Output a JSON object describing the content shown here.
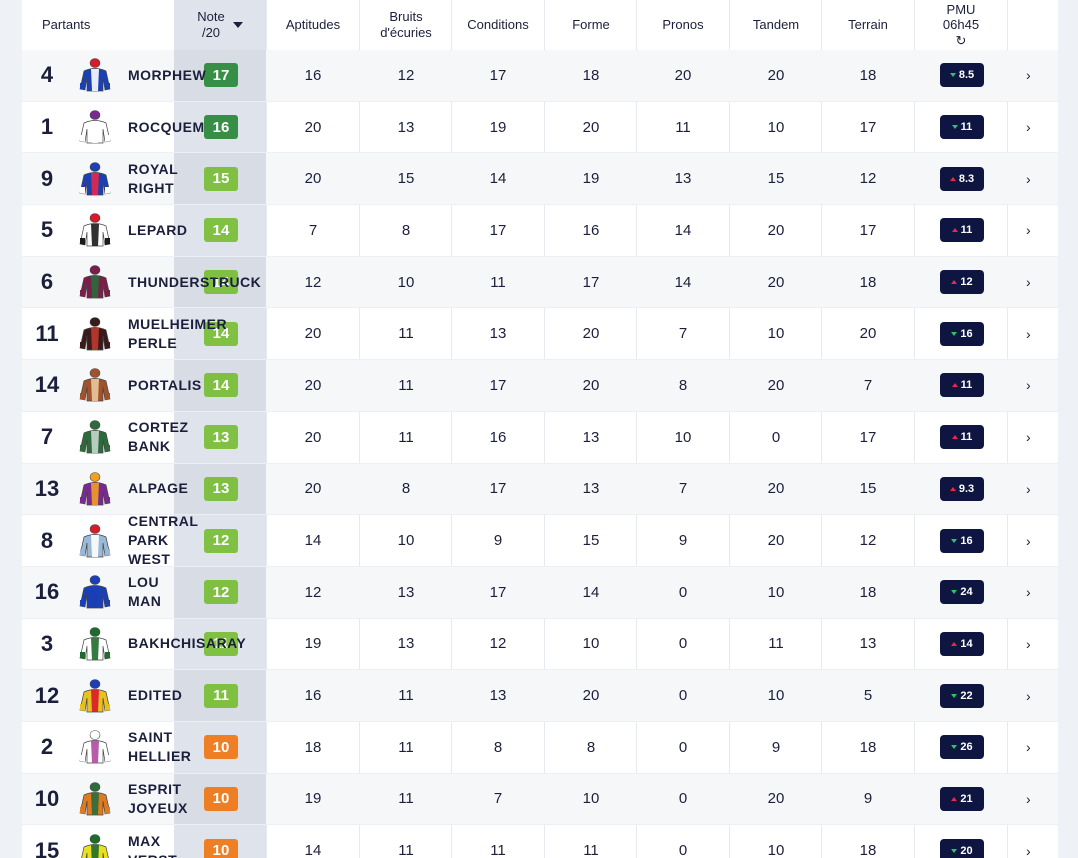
{
  "header": {
    "partants": "Partants",
    "note_line1": "Note",
    "note_line2": "/20",
    "aptitudes": "Aptitudes",
    "bruits_line1": "Bruits",
    "bruits_line2": "d'écuries",
    "conditions": "Conditions",
    "forme": "Forme",
    "pronos": "Pronos",
    "tandem": "Tandem",
    "terrain": "Terrain",
    "pmu_line1": "PMU",
    "pmu_line2": "06h45"
  },
  "colors": {
    "dark_green": "#2e8b3c",
    "light_green": "#7bbf3a",
    "orange": "#f07a1a",
    "odds_bg": "#0e1540",
    "trend_up": "#e8284a",
    "trend_down": "#2bc46a"
  },
  "rows": [
    {
      "num": "4",
      "name": "MORPHEW",
      "note": "17",
      "tier": "dark",
      "aptitudes": "16",
      "bruits": "12",
      "conditions": "17",
      "forme": "18",
      "pronos": "20",
      "tandem": "20",
      "terrain": "18",
      "odds": "8.5",
      "trend": "down",
      "silk": [
        "#1b3fb4",
        "#ffffff",
        "#1b3fb4",
        "#d61b2a"
      ]
    },
    {
      "num": "1",
      "name": "ROCQUEM",
      "note": "16",
      "tier": "dark",
      "aptitudes": "20",
      "bruits": "13",
      "conditions": "19",
      "forme": "20",
      "pronos": "11",
      "tandem": "10",
      "terrain": "17",
      "odds": "11",
      "trend": "down",
      "silk": [
        "#ffffff",
        "#ffffff",
        "#ffffff",
        "#7a2a8f"
      ]
    },
    {
      "num": "9",
      "name": "ROYAL\nRIGHT",
      "note": "15",
      "tier": "light",
      "aptitudes": "20",
      "bruits": "15",
      "conditions": "14",
      "forme": "19",
      "pronos": "13",
      "tandem": "15",
      "terrain": "12",
      "odds": "8.3",
      "trend": "up",
      "silk": [
        "#1b3fb4",
        "#e8284a",
        "#ffffff",
        "#1b3fb4"
      ]
    },
    {
      "num": "5",
      "name": "LEPARD",
      "note": "14",
      "tier": "light",
      "aptitudes": "7",
      "bruits": "8",
      "conditions": "17",
      "forme": "16",
      "pronos": "14",
      "tandem": "20",
      "terrain": "17",
      "odds": "11",
      "trend": "up",
      "silk": [
        "#ffffff",
        "#1b1b1b",
        "#1b1b1b",
        "#d61b2a"
      ]
    },
    {
      "num": "6",
      "name": "THUNDERSTRUCK",
      "note": "14",
      "tier": "light",
      "aptitudes": "12",
      "bruits": "10",
      "conditions": "11",
      "forme": "17",
      "pronos": "14",
      "tandem": "20",
      "terrain": "18",
      "odds": "12",
      "trend": "up",
      "silk": [
        "#7a1f4a",
        "#2a6b3a",
        "#7a1f4a",
        "#7a1f4a"
      ]
    },
    {
      "num": "11",
      "name": "MUELHEIMER\nPERLE",
      "note": "14",
      "tier": "light",
      "aptitudes": "20",
      "bruits": "11",
      "conditions": "13",
      "forme": "20",
      "pronos": "7",
      "tandem": "10",
      "terrain": "20",
      "odds": "16",
      "trend": "down",
      "silk": [
        "#3a1a1a",
        "#c0392b",
        "#3a1a1a",
        "#3a1a1a"
      ]
    },
    {
      "num": "14",
      "name": "PORTALIS",
      "note": "14",
      "tier": "light",
      "aptitudes": "20",
      "bruits": "11",
      "conditions": "17",
      "forme": "20",
      "pronos": "8",
      "tandem": "20",
      "terrain": "7",
      "odds": "11",
      "trend": "up",
      "silk": [
        "#a0522d",
        "#e8c9a0",
        "#a0522d",
        "#a0522d"
      ]
    },
    {
      "num": "7",
      "name": "CORTEZ\nBANK",
      "note": "13",
      "tier": "light",
      "aptitudes": "20",
      "bruits": "11",
      "conditions": "16",
      "forme": "13",
      "pronos": "10",
      "tandem": "0",
      "terrain": "17",
      "odds": "11",
      "trend": "up",
      "silk": [
        "#2e6b3c",
        "#c8d6cc",
        "#2e6b3c",
        "#2e6b3c"
      ]
    },
    {
      "num": "13",
      "name": "ALPAGE",
      "note": "13",
      "tier": "light",
      "aptitudes": "20",
      "bruits": "8",
      "conditions": "17",
      "forme": "13",
      "pronos": "7",
      "tandem": "20",
      "terrain": "15",
      "odds": "9.3",
      "trend": "up",
      "silk": [
        "#7a2a8f",
        "#f0a020",
        "#7a2a8f",
        "#f0a020"
      ]
    },
    {
      "num": "8",
      "name": "CENTRAL\nPARK\nWEST",
      "note": "12",
      "tier": "light",
      "aptitudes": "14",
      "bruits": "10",
      "conditions": "9",
      "forme": "15",
      "pronos": "9",
      "tandem": "20",
      "terrain": "12",
      "odds": "16",
      "trend": "down",
      "silk": [
        "#9ab8d8",
        "#ffffff",
        "#9ab8d8",
        "#d61b2a"
      ]
    },
    {
      "num": "16",
      "name": "LOU\nMAN",
      "note": "12",
      "tier": "light",
      "aptitudes": "12",
      "bruits": "13",
      "conditions": "17",
      "forme": "14",
      "pronos": "0",
      "tandem": "10",
      "terrain": "18",
      "odds": "24",
      "trend": "down",
      "silk": [
        "#1b3fb4",
        "#1b3fb4",
        "#1b3fb4",
        "#1b3fb4"
      ]
    },
    {
      "num": "3",
      "name": "BAKHCHISARAY",
      "note": "11",
      "tier": "light",
      "aptitudes": "19",
      "bruits": "13",
      "conditions": "12",
      "forme": "10",
      "pronos": "0",
      "tandem": "11",
      "terrain": "13",
      "odds": "14",
      "trend": "up",
      "silk": [
        "#ffffff",
        "#1e6b2e",
        "#1e6b2e",
        "#1e6b2e"
      ]
    },
    {
      "num": "12",
      "name": "EDITED",
      "note": "11",
      "tier": "light",
      "aptitudes": "16",
      "bruits": "11",
      "conditions": "13",
      "forme": "20",
      "pronos": "0",
      "tandem": "10",
      "terrain": "5",
      "odds": "22",
      "trend": "down",
      "silk": [
        "#e8c020",
        "#d61b2a",
        "#e8c020",
        "#1b3fb4"
      ]
    },
    {
      "num": "2",
      "name": "SAINT\nHELLIER",
      "note": "10",
      "tier": "orange",
      "aptitudes": "18",
      "bruits": "11",
      "conditions": "8",
      "forme": "8",
      "pronos": "0",
      "tandem": "9",
      "terrain": "18",
      "odds": "26",
      "trend": "down",
      "silk": [
        "#ffffff",
        "#b04aa0",
        "#ffffff",
        "#ffffff"
      ]
    },
    {
      "num": "10",
      "name": "ESPRIT\nJOYEUX",
      "note": "10",
      "tier": "orange",
      "aptitudes": "19",
      "bruits": "11",
      "conditions": "7",
      "forme": "10",
      "pronos": "0",
      "tandem": "20",
      "terrain": "9",
      "odds": "21",
      "trend": "up",
      "silk": [
        "#e07a20",
        "#2e6b3c",
        "#e07a20",
        "#2e6b3c"
      ]
    },
    {
      "num": "15",
      "name": "MAX\nVERST",
      "note": "10",
      "tier": "orange",
      "aptitudes": "14",
      "bruits": "11",
      "conditions": "11",
      "forme": "11",
      "pronos": "0",
      "tandem": "10",
      "terrain": "18",
      "odds": "20",
      "trend": "down",
      "silk": [
        "#e8e020",
        "#1e6b2e",
        "#e8e020",
        "#1e6b2e"
      ]
    }
  ]
}
